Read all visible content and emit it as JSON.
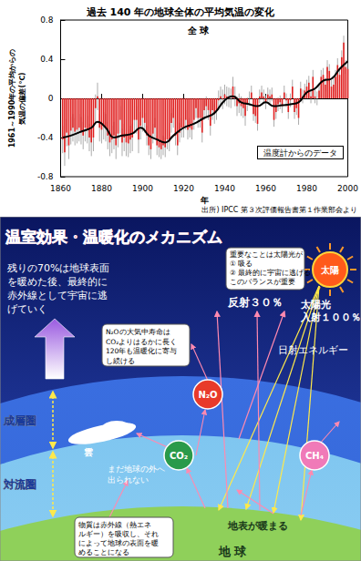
{
  "chart_data": {
    "type": "bar",
    "title": "過去 140 年の地球全体の平均気温の変化",
    "annotations": [
      "全 球",
      "温度計からのデータ"
    ],
    "source": "出所) IPCC 第３次評価報告書第１作業部会より",
    "xlabel": "年",
    "ylabel": "1961～1990年の平均からの\n気温の偏差(℃)",
    "x": [
      1861,
      1862,
      1863,
      1864,
      1865,
      1866,
      1867,
      1868,
      1869,
      1870,
      1871,
      1872,
      1873,
      1874,
      1875,
      1876,
      1877,
      1878,
      1879,
      1880,
      1881,
      1882,
      1883,
      1884,
      1885,
      1886,
      1887,
      1888,
      1889,
      1890,
      1891,
      1892,
      1893,
      1894,
      1895,
      1896,
      1897,
      1898,
      1899,
      1900,
      1901,
      1902,
      1903,
      1904,
      1905,
      1906,
      1907,
      1908,
      1909,
      1910,
      1911,
      1912,
      1913,
      1914,
      1915,
      1916,
      1917,
      1918,
      1919,
      1920,
      1921,
      1922,
      1923,
      1924,
      1925,
      1926,
      1927,
      1928,
      1929,
      1930,
      1931,
      1932,
      1933,
      1934,
      1935,
      1936,
      1937,
      1938,
      1939,
      1940,
      1941,
      1942,
      1943,
      1944,
      1945,
      1946,
      1947,
      1948,
      1949,
      1950,
      1951,
      1952,
      1953,
      1954,
      1955,
      1956,
      1957,
      1958,
      1959,
      1960,
      1961,
      1962,
      1963,
      1964,
      1965,
      1966,
      1967,
      1968,
      1969,
      1970,
      1971,
      1972,
      1973,
      1974,
      1975,
      1976,
      1977,
      1978,
      1979,
      1980,
      1981,
      1982,
      1983,
      1984,
      1985,
      1986,
      1987,
      1988,
      1989,
      1990,
      1991,
      1992,
      1993,
      1994,
      1995,
      1996,
      1997,
      1998,
      1999,
      2000
    ],
    "series": [
      {
        "type": "bar",
        "color": "#e02020",
        "values": [
          -0.42,
          -0.55,
          -0.35,
          -0.48,
          -0.33,
          -0.3,
          -0.34,
          -0.32,
          -0.3,
          -0.33,
          -0.38,
          -0.3,
          -0.32,
          -0.4,
          -0.45,
          -0.4,
          -0.1,
          0.02,
          -0.3,
          -0.32,
          -0.28,
          -0.3,
          -0.38,
          -0.45,
          -0.42,
          -0.38,
          -0.48,
          -0.36,
          -0.22,
          -0.45,
          -0.4,
          -0.45,
          -0.46,
          -0.42,
          -0.4,
          -0.22,
          -0.22,
          -0.42,
          -0.28,
          -0.2,
          -0.25,
          -0.38,
          -0.48,
          -0.52,
          -0.36,
          -0.3,
          -0.48,
          -0.5,
          -0.52,
          -0.48,
          -0.5,
          -0.42,
          -0.44,
          -0.25,
          -0.2,
          -0.38,
          -0.48,
          -0.35,
          -0.3,
          -0.3,
          -0.22,
          -0.32,
          -0.3,
          -0.32,
          -0.22,
          -0.1,
          -0.2,
          -0.2,
          -0.35,
          -0.12,
          -0.08,
          -0.12,
          -0.28,
          -0.12,
          -0.16,
          -0.12,
          -0.02,
          0.02,
          -0.01,
          0.04,
          0.02,
          0.01,
          0.0,
          0.12,
          0.02,
          -0.08,
          -0.05,
          -0.08,
          -0.1,
          -0.18,
          -0.06,
          0.0,
          0.06,
          -0.16,
          -0.18,
          -0.26,
          0.02,
          0.06,
          0.02,
          -0.04,
          0.04,
          0.02,
          0.04,
          -0.22,
          -0.14,
          -0.06,
          -0.04,
          -0.08,
          0.06,
          -0.02,
          -0.14,
          -0.02,
          0.12,
          -0.14,
          -0.1,
          -0.2,
          0.1,
          0.02,
          0.08,
          0.12,
          0.16,
          0.02,
          0.22,
          0.02,
          0.0,
          0.08,
          0.22,
          0.24,
          0.14,
          0.32,
          0.28,
          0.12,
          0.14,
          0.22,
          0.34,
          0.24,
          0.42,
          0.57,
          0.32,
          0.3
        ],
        "errors": [
          0.14,
          0.14,
          0.14,
          0.14,
          0.14,
          0.14,
          0.14,
          0.14,
          0.14,
          0.14,
          0.14,
          0.14,
          0.14,
          0.14,
          0.14,
          0.14,
          0.14,
          0.14,
          0.14,
          0.14,
          0.14,
          0.14,
          0.14,
          0.14,
          0.14,
          0.14,
          0.14,
          0.14,
          0.14,
          0.14,
          0.14,
          0.14,
          0.14,
          0.14,
          0.14,
          0.14,
          0.14,
          0.14,
          0.14,
          0.14,
          0.1,
          0.1,
          0.1,
          0.1,
          0.1,
          0.1,
          0.1,
          0.1,
          0.1,
          0.1,
          0.1,
          0.1,
          0.1,
          0.1,
          0.1,
          0.1,
          0.1,
          0.1,
          0.1,
          0.1,
          0.1,
          0.1,
          0.1,
          0.1,
          0.1,
          0.1,
          0.1,
          0.1,
          0.1,
          0.1,
          0.1,
          0.1,
          0.1,
          0.1,
          0.1,
          0.1,
          0.1,
          0.1,
          0.1,
          0.1,
          0.1,
          0.1,
          0.1,
          0.1,
          0.1,
          0.1,
          0.1,
          0.1,
          0.1,
          0.1,
          0.07,
          0.07,
          0.07,
          0.07,
          0.07,
          0.07,
          0.07,
          0.07,
          0.07,
          0.07,
          0.07,
          0.07,
          0.07,
          0.07,
          0.07,
          0.07,
          0.07,
          0.07,
          0.07,
          0.07,
          0.07,
          0.07,
          0.07,
          0.07,
          0.07,
          0.07,
          0.07,
          0.07,
          0.07,
          0.07,
          0.07,
          0.07,
          0.07,
          0.07,
          0.07,
          0.07,
          0.07,
          0.07,
          0.07,
          0.07,
          0.07,
          0.07,
          0.07,
          0.07,
          0.07,
          0.07,
          0.07,
          0.07,
          0.07,
          0.07
        ]
      },
      {
        "type": "line",
        "color": "#000000",
        "x": [
          1861,
          1865,
          1870,
          1875,
          1878,
          1882,
          1886,
          1890,
          1895,
          1899,
          1903,
          1907,
          1911,
          1915,
          1920,
          1925,
          1930,
          1935,
          1940,
          1944,
          1948,
          1952,
          1956,
          1960,
          1964,
          1968,
          1972,
          1976,
          1980,
          1984,
          1988,
          1992,
          1996,
          2000
        ],
        "values": [
          -0.4,
          -0.38,
          -0.34,
          -0.3,
          -0.24,
          -0.3,
          -0.4,
          -0.38,
          -0.36,
          -0.3,
          -0.38,
          -0.42,
          -0.45,
          -0.38,
          -0.3,
          -0.26,
          -0.2,
          -0.15,
          -0.02,
          0.02,
          -0.04,
          -0.06,
          -0.08,
          -0.04,
          -0.08,
          -0.07,
          -0.06,
          -0.04,
          0.06,
          0.1,
          0.18,
          0.2,
          0.3,
          0.38
        ]
      }
    ],
    "xlim": [
      1860,
      2000
    ],
    "xticks": [
      1860,
      1880,
      1900,
      1920,
      1940,
      1960,
      1980,
      2000
    ],
    "ylim": [
      -0.8,
      0.8
    ],
    "yticks": [
      -0.8,
      -0.4,
      0,
      0.4,
      0.8
    ],
    "grid": false
  },
  "diagram": {
    "title": "温室効果・温暖化のメカニズム",
    "sun": "太陽",
    "balance_note": [
      "重要なことは太陽光が",
      "① 吸る",
      "② 最終的に宇宙に逃げる",
      "このバランスが重要"
    ],
    "reflection": "反射３０％",
    "incoming": [
      "太陽光",
      "入射１００％"
    ],
    "solar_energy": "日射エネルギー",
    "escape_note": [
      "残りの70%は地球表面",
      "を暖めた後、最終的に",
      "赤外線として宇宙に逃",
      "げていく"
    ],
    "n2o_note": [
      "N₂Oの大気中寿命は",
      "CO₂よりはるかに長く",
      "120年も温暖化に寄与",
      "し続ける"
    ],
    "gases": [
      "N₂O",
      "CO₂",
      "CH₄"
    ],
    "layers": [
      "成層圏",
      "対流圏"
    ],
    "cloud": "雲",
    "trapped_note": [
      "まだ地球の外へ",
      "出られない"
    ],
    "surface_warms": "地表が暖まる",
    "absorb_note": [
      "物質は赤外線（熱エネ",
      "ルギー）を吸収し、それ",
      "によって地球の表面を暖",
      "めることになる"
    ],
    "earth": "地 球"
  }
}
